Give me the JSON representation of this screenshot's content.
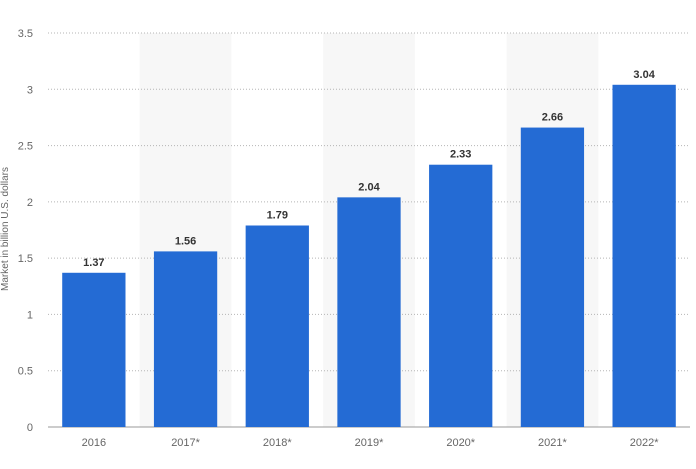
{
  "chart_data": {
    "type": "bar",
    "title": "",
    "xlabel": "",
    "ylabel": "Market in billion U.S. dollars",
    "categories": [
      "2016",
      "2017*",
      "2018*",
      "2019*",
      "2020*",
      "2021*",
      "2022*"
    ],
    "values": [
      1.37,
      1.56,
      1.79,
      2.04,
      2.33,
      2.66,
      3.04
    ],
    "data_labels": [
      "1.37",
      "1.56",
      "1.79",
      "2.04",
      "2.33",
      "2.66",
      "3.04"
    ],
    "ylim": [
      0,
      3.5
    ],
    "yticks": [
      0,
      0.5,
      1,
      1.5,
      2,
      2.5,
      3,
      3.5
    ],
    "ytick_labels": [
      "0",
      "0.5",
      "1",
      "1.5",
      "2",
      "2.5",
      "3",
      "3.5"
    ],
    "grid": true,
    "grid_style": "dotted",
    "legend": "none",
    "colors": {
      "bar": "#246BD4",
      "alt_band": "#F7F7F7",
      "grid": "#B5B5B5",
      "tick_text": "#666666",
      "value_text": "#333333"
    }
  }
}
